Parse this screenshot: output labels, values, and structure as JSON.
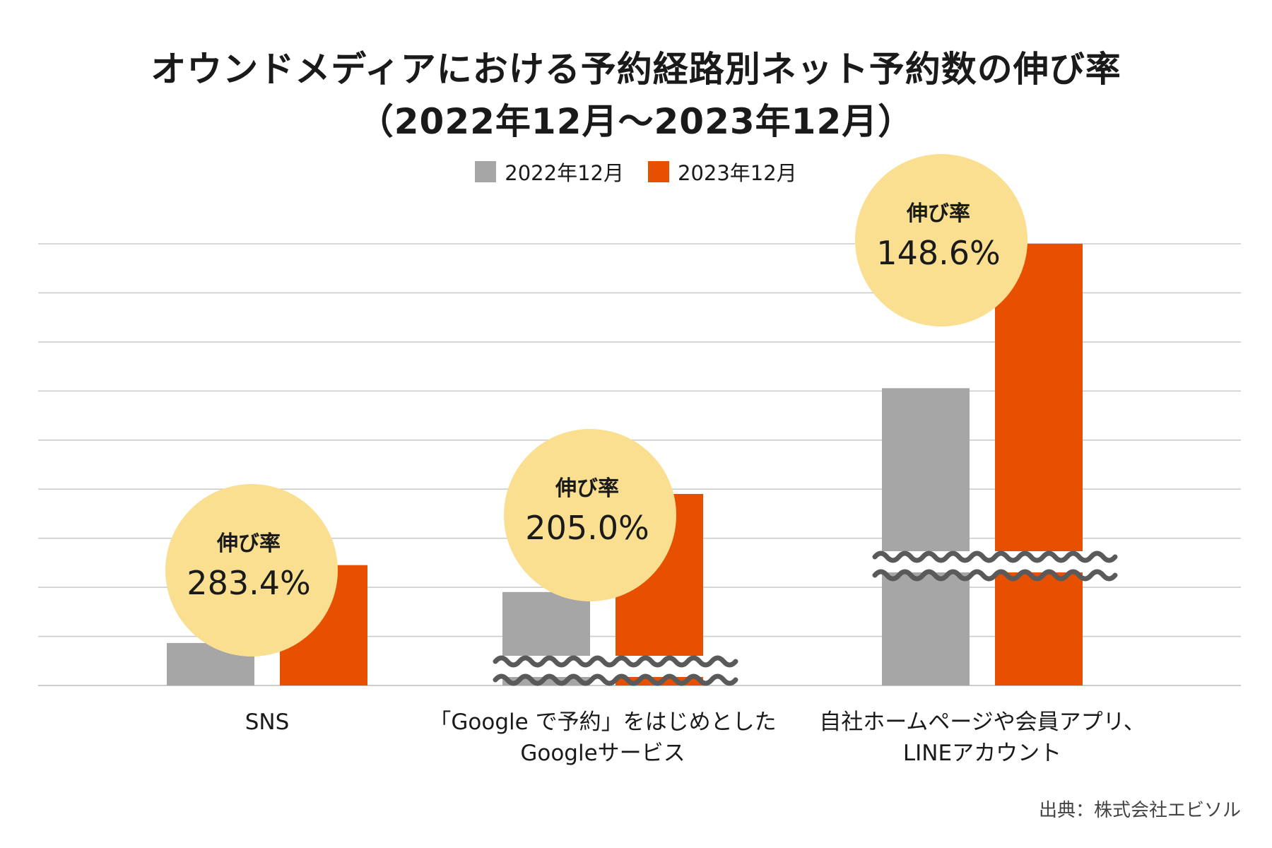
{
  "chart_data": {
    "type": "bar",
    "title_line1": "オウンドメディアにおける予約経路別ネット予約数の伸び率",
    "title_line2": "（2022年12月～2023年12月）",
    "categories": [
      "SNS",
      "「Google で予約」をはじめとしたGoogleサービス",
      "自社ホームページや会員アプリ、LINEアカウント"
    ],
    "category_lines": [
      [
        "SNS"
      ],
      [
        "「Google で予約」をはじめとした",
        "Googleサービス"
      ],
      [
        "自社ホームページや会員アプリ、",
        "LINEアカウント"
      ]
    ],
    "series": [
      {
        "name": "2022年12月",
        "color": "#a6a6a6",
        "values": [
          1.0,
          2.2,
          7.0
        ]
      },
      {
        "name": "2023年12月",
        "color": "#e65000",
        "values": [
          2.834,
          4.51,
          10.402
        ]
      }
    ],
    "growth_label": "伸び率",
    "growth_rates": [
      "283.4%",
      "205.0%",
      "148.6%"
    ],
    "axis_breaks": [
      false,
      true,
      true
    ],
    "ylabel": "",
    "xlabel": "",
    "ylim": [
      0,
      11
    ],
    "grid": true,
    "legend_position": "top-center",
    "source": "出典：株式会社エビソル"
  },
  "colors": {
    "gray_bar": "#a6a6a6",
    "orange_bar": "#e65000",
    "bubble": "#f9df8f",
    "grid": "#cccccc",
    "break_line": "#5a5a5a"
  }
}
